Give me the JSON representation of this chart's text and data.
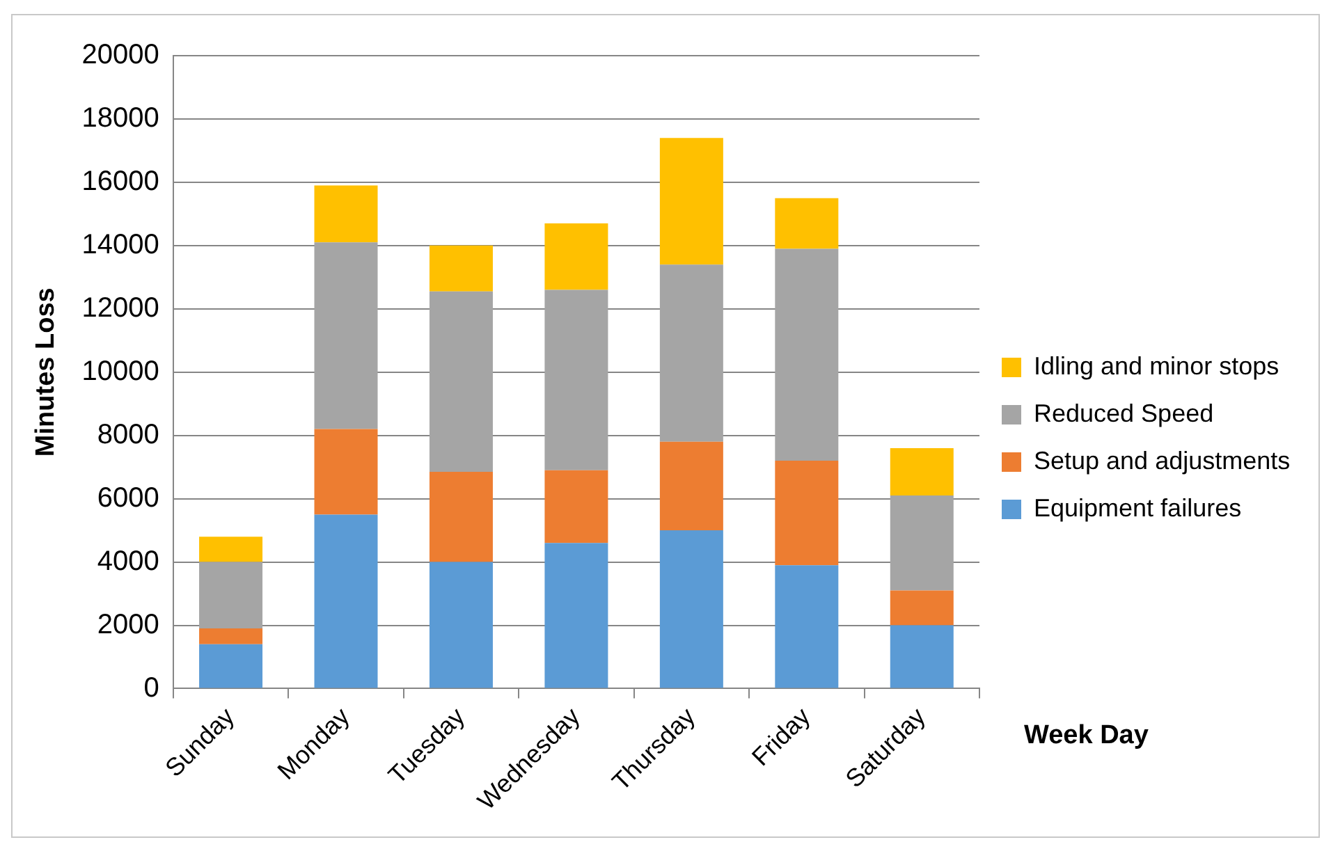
{
  "chart_data": {
    "type": "bar",
    "stacked": true,
    "xlabel": "Week Day",
    "ylabel": "Minutes Loss",
    "categories": [
      "Sunday",
      "Monday",
      "Tuesday",
      "Wednesday",
      "Thursday",
      "Friday",
      "Saturday"
    ],
    "series": [
      {
        "name": "Equipment failures",
        "color": "#5b9bd5",
        "values": [
          1400,
          5500,
          4000,
          4600,
          5000,
          3900,
          2000
        ]
      },
      {
        "name": "Setup and adjustments",
        "color": "#ed7d31",
        "values": [
          500,
          2700,
          2850,
          2300,
          2800,
          3300,
          1100
        ]
      },
      {
        "name": "Reduced Speed",
        "color": "#a5a5a5",
        "values": [
          2100,
          5900,
          5700,
          5700,
          5600,
          6700,
          3000
        ]
      },
      {
        "name": "Idling and minor stops",
        "color": "#ffc000",
        "values": [
          800,
          1800,
          1450,
          2100,
          4000,
          1600,
          1500
        ]
      }
    ],
    "ylim": [
      0,
      20000
    ],
    "yticks": [
      0,
      2000,
      4000,
      6000,
      8000,
      10000,
      12000,
      14000,
      16000,
      18000,
      20000
    ],
    "grid": "y",
    "legend": "right"
  }
}
